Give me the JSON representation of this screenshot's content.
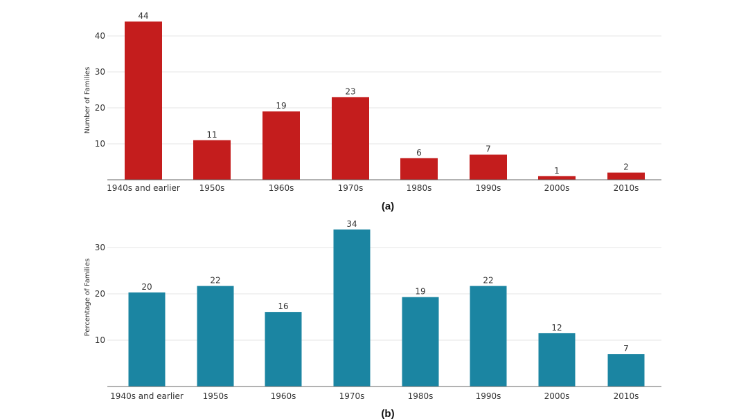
{
  "chart_data": [
    {
      "type": "bar",
      "caption": "(a)",
      "ylabel": "Number of Families",
      "xlabel": "",
      "categories": [
        "1940s and earlier",
        "1950s",
        "1960s",
        "1970s",
        "1980s",
        "1990s",
        "2000s",
        "2010s"
      ],
      "values": [
        44,
        11,
        19,
        23,
        6,
        7,
        1,
        2
      ],
      "data_labels": [
        "44",
        "11",
        "19",
        "23",
        "6",
        "7",
        "1",
        "2"
      ],
      "yticks": [
        10,
        20,
        30,
        40
      ],
      "ylim": [
        0,
        45
      ],
      "grid": true,
      "color": "#c41d1d"
    },
    {
      "type": "bar",
      "caption": "(b)",
      "ylabel": "Percentage of Families",
      "xlabel": "",
      "categories": [
        "1940s and earlier",
        "1950s",
        "1960s",
        "1970s",
        "1980s",
        "1990s",
        "2000s",
        "2010s"
      ],
      "values": [
        20.3,
        21.7,
        16.1,
        33.9,
        19.3,
        21.7,
        11.5,
        7.0
      ],
      "data_labels": [
        "20",
        "22",
        "16",
        "34",
        "19",
        "22",
        "12",
        "7"
      ],
      "yticks": [
        10,
        20,
        30
      ],
      "ylim": [
        0,
        34
      ],
      "grid": true,
      "color": "#1b85a2"
    }
  ]
}
